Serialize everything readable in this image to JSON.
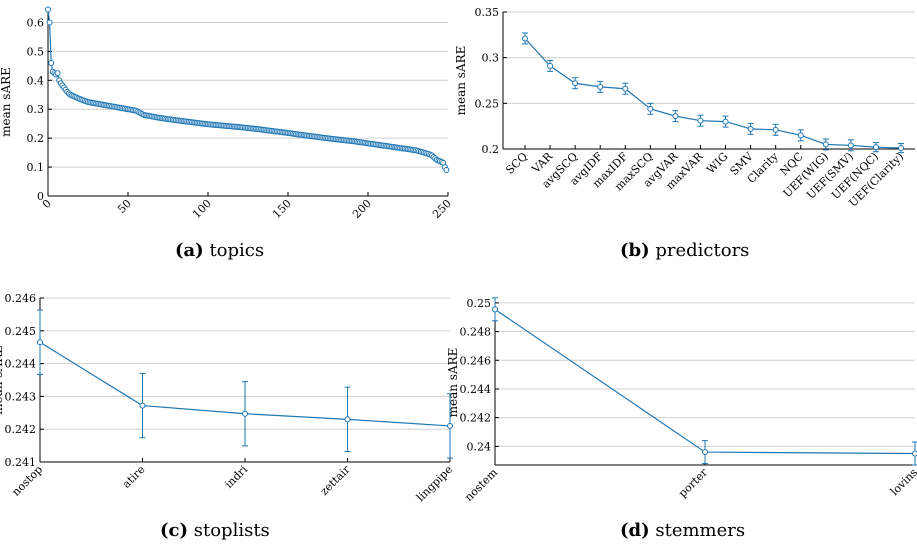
{
  "charts": [
    {
      "id": "a",
      "caption_label": "(a)",
      "caption_text": "topics"
    },
    {
      "id": "b",
      "caption_label": "(b)",
      "caption_text": "predictors"
    },
    {
      "id": "c",
      "caption_label": "(c)",
      "caption_text": "stoplists"
    },
    {
      "id": "d",
      "caption_label": "(d)",
      "caption_text": "stemmers"
    }
  ],
  "colors": {
    "series": "#1f77b4",
    "grid": "#d0d0d0",
    "axis": "#000000"
  },
  "chart_data": [
    {
      "type": "line",
      "title": "(a) topics",
      "ylabel": "mean sARE",
      "xlim": [
        0,
        250
      ],
      "ylim": [
        0,
        0.65
      ],
      "xticks": [
        0,
        50,
        100,
        150,
        200,
        250
      ],
      "yticks": [
        0,
        0.1,
        0.2,
        0.3,
        0.4,
        0.5,
        0.6
      ],
      "grid": true,
      "description_points": "sorted mean sARE per topic, index 0..249",
      "x": [
        0,
        1,
        2,
        3,
        4,
        5,
        6,
        7,
        8,
        10,
        12,
        14,
        16,
        18,
        20,
        25,
        30,
        35,
        40,
        45,
        50,
        55,
        60,
        65,
        70,
        80,
        90,
        100,
        110,
        120,
        130,
        140,
        150,
        160,
        170,
        180,
        190,
        200,
        210,
        220,
        230,
        235,
        238,
        240,
        243,
        245,
        247,
        248,
        249
      ],
      "y": [
        0.645,
        0.6,
        0.46,
        0.43,
        0.425,
        0.42,
        0.425,
        0.4,
        0.39,
        0.375,
        0.36,
        0.35,
        0.345,
        0.34,
        0.335,
        0.325,
        0.32,
        0.315,
        0.31,
        0.305,
        0.3,
        0.295,
        0.28,
        0.275,
        0.27,
        0.262,
        0.255,
        0.248,
        0.243,
        0.238,
        0.232,
        0.225,
        0.218,
        0.21,
        0.203,
        0.196,
        0.19,
        0.182,
        0.174,
        0.166,
        0.158,
        0.15,
        0.145,
        0.14,
        0.125,
        0.12,
        0.115,
        0.1,
        0.09
      ]
    },
    {
      "type": "line",
      "title": "(b) predictors",
      "ylabel": "mean sARE",
      "ylim": [
        0.2,
        0.35
      ],
      "yticks": [
        0.2,
        0.25,
        0.3,
        0.35
      ],
      "grid": true,
      "categories": [
        "SCQ",
        "VAR",
        "avgSCQ",
        "avgIDF",
        "maxIDF",
        "maxSCQ",
        "avgVAR",
        "maxVAR",
        "WIG",
        "SMV",
        "Clarity",
        "NQC",
        "UEF(WIG)",
        "UEF(SMV)",
        "UEF(NQC)",
        "UEF(Clarity)"
      ],
      "values": [
        0.321,
        0.291,
        0.272,
        0.268,
        0.266,
        0.244,
        0.236,
        0.231,
        0.23,
        0.222,
        0.221,
        0.215,
        0.205,
        0.204,
        0.202,
        0.201
      ],
      "err": [
        0.006,
        0.006,
        0.006,
        0.006,
        0.006,
        0.006,
        0.006,
        0.006,
        0.006,
        0.006,
        0.006,
        0.006,
        0.006,
        0.006,
        0.005,
        0.005
      ]
    },
    {
      "type": "line",
      "title": "(c) stoplists",
      "ylabel": "mean sARE",
      "ylim": [
        0.241,
        0.246
      ],
      "yticks": [
        0.241,
        0.242,
        0.243,
        0.244,
        0.245,
        0.246
      ],
      "grid": true,
      "categories": [
        "nostop",
        "atire",
        "indri",
        "zettair",
        "lingpipe"
      ],
      "values": [
        0.24465,
        0.24272,
        0.24247,
        0.2423,
        0.2421
      ],
      "err": [
        0.00098,
        0.00098,
        0.00098,
        0.00098,
        0.00098
      ]
    },
    {
      "type": "line",
      "title": "(d) stemmers",
      "ylabel": "mean sARE",
      "ylim": [
        0.2387,
        0.2502
      ],
      "yticks": [
        0.24,
        0.242,
        0.244,
        0.246,
        0.248,
        0.25
      ],
      "grid": true,
      "categories": [
        "nostem",
        "porter",
        "lovins"
      ],
      "values": [
        0.24955,
        0.2396,
        0.2395
      ],
      "err": [
        0.0008,
        0.0008,
        0.0008
      ]
    }
  ]
}
